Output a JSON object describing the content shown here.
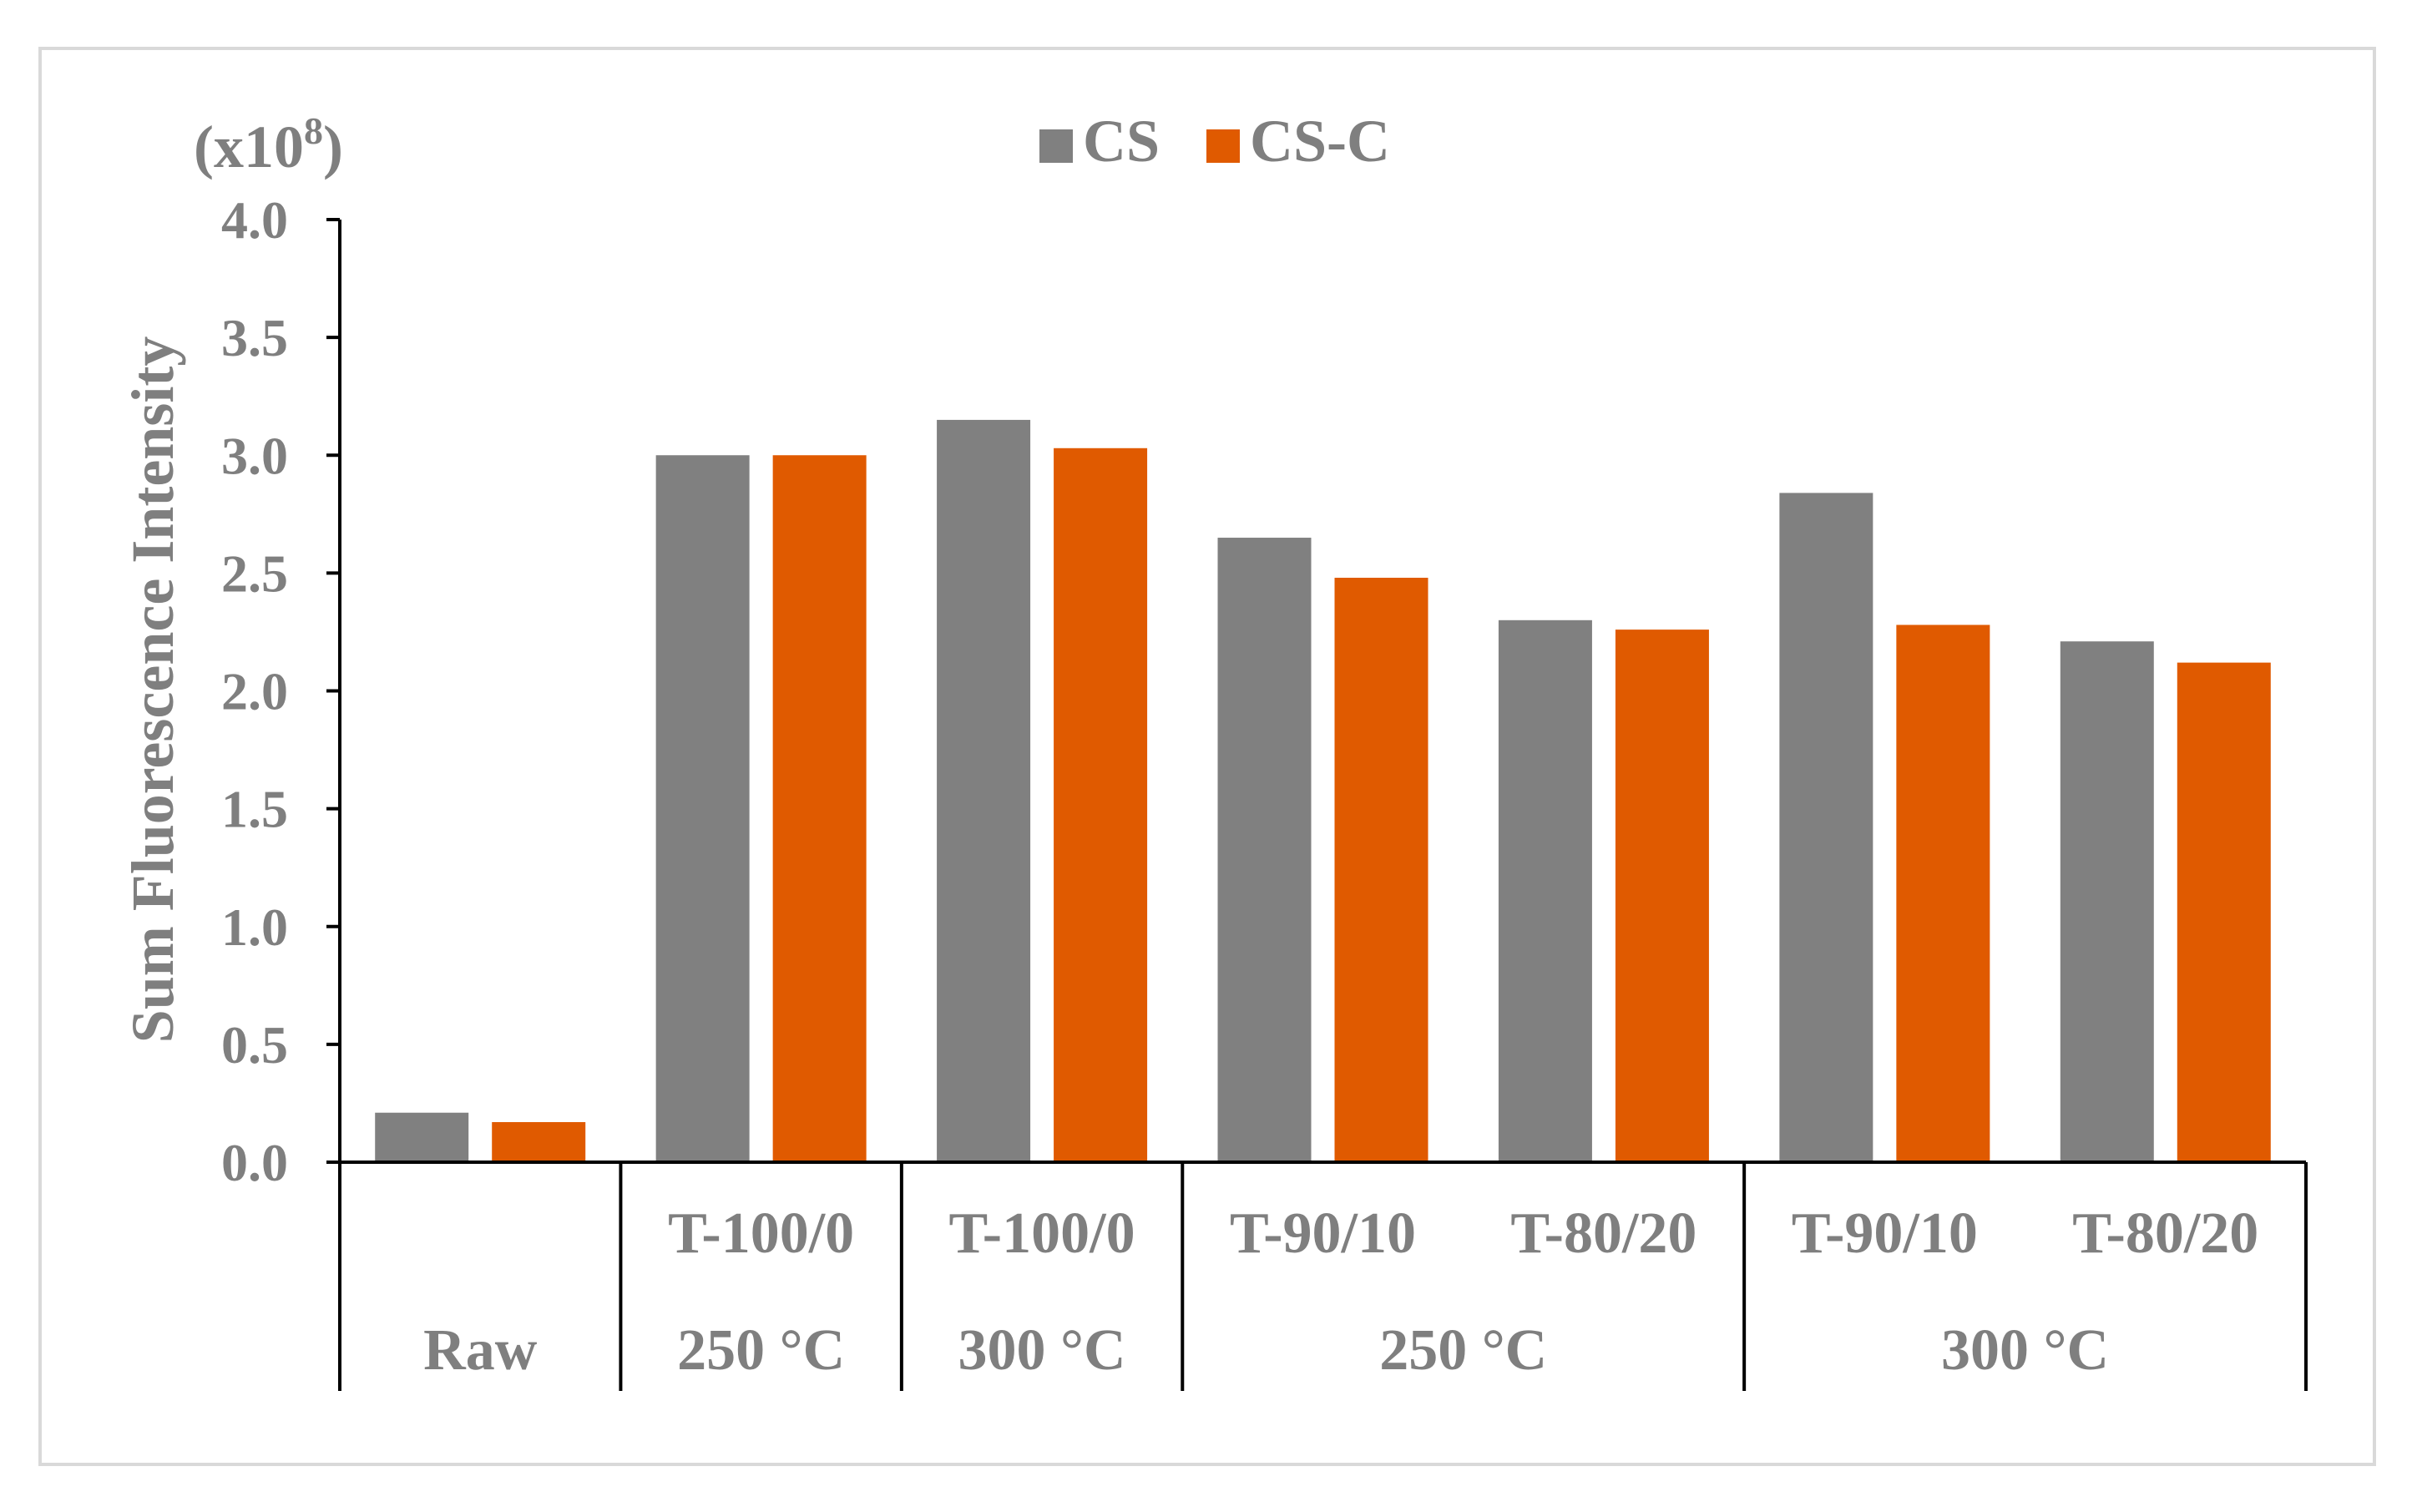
{
  "chart_data": {
    "type": "bar",
    "ylabel": "Sum Fluorescence Intensity",
    "y_multiplier_label": "(x10",
    "y_multiplier_exponent": "8",
    "y_multiplier_close": ")",
    "ylim": [
      0,
      4.0
    ],
    "y_ticks": [
      "0.0",
      "0.5",
      "1.0",
      "1.5",
      "2.0",
      "2.5",
      "3.0",
      "3.5",
      "4.0"
    ],
    "grid": false,
    "legend_position": "top",
    "categories": [
      "Raw",
      "T-100/0",
      "T-100/0",
      "T-90/10",
      "T-80/20",
      "T-90/10",
      "T-80/20"
    ],
    "group_labels": [
      {
        "label": "Raw",
        "span": [
          0,
          0
        ]
      },
      {
        "label": "250 °C",
        "span": [
          1,
          1
        ]
      },
      {
        "label": "300 °C",
        "span": [
          2,
          2
        ]
      },
      {
        "label": "250 °C",
        "span": [
          3,
          4
        ]
      },
      {
        "label": "300 °C",
        "span": [
          5,
          6
        ]
      }
    ],
    "series": [
      {
        "name": "CS",
        "color": "#808080",
        "values": [
          0.21,
          3.0,
          3.15,
          2.65,
          2.3,
          2.84,
          2.21
        ]
      },
      {
        "name": "CS-C",
        "color": "#e05a00",
        "values": [
          0.17,
          3.0,
          3.03,
          2.48,
          2.26,
          2.28,
          2.12
        ]
      }
    ]
  }
}
